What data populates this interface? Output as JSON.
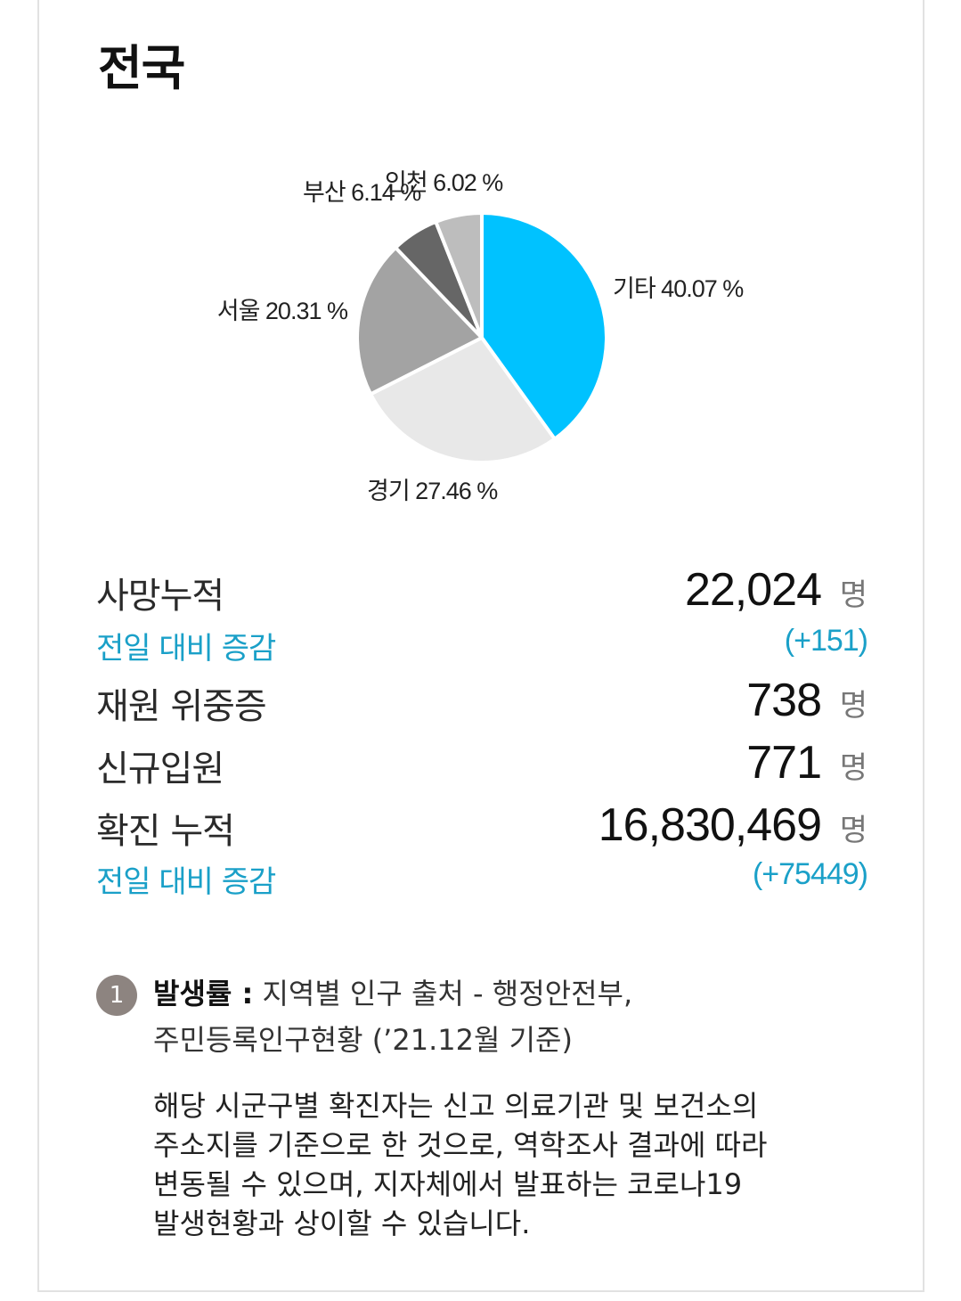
{
  "page": {
    "title": "전국"
  },
  "chart_data": {
    "type": "pie",
    "slices": [
      {
        "label": "기타",
        "value": 40.07,
        "display": "기타 40.07 %",
        "color": "#00c2ff"
      },
      {
        "label": "경기",
        "value": 27.46,
        "display": "경기 27.46 %",
        "color": "#e8e8e8"
      },
      {
        "label": "서울",
        "value": 20.31,
        "display": "서울 20.31 %",
        "color": "#a3a3a3"
      },
      {
        "label": "부산",
        "value": 6.14,
        "display": "부산 6.14 %",
        "color": "#666666"
      },
      {
        "label": "인천",
        "value": 6.02,
        "display": "인천 6.02 %",
        "color": "#bdbdbd"
      }
    ],
    "unit": "%"
  },
  "stats": {
    "deaths_label": "사망누적",
    "deaths_value": "22,024",
    "deaths_unit": "명",
    "deaths_delta_label": "전일 대비 증감",
    "deaths_delta_value": "(+151)",
    "critical_label": "재원 위중증",
    "critical_value": "738",
    "critical_unit": "명",
    "admit_label": "신규입원",
    "admit_value": "771",
    "admit_unit": "명",
    "confirmed_label": "확진 누적",
    "confirmed_value": "16,830,469",
    "confirmed_unit": "명",
    "confirmed_delta_label": "전일 대비 증감",
    "confirmed_delta_value": "(+75449)"
  },
  "note": {
    "number": "1",
    "strong": "발생률 :",
    "line1": " 지역별 인구 출처 - 행정안전부,",
    "line2": "주민등록인구현황 (’21.12월 기준)",
    "body": [
      "해당 시군구별 확진자는 신고 의료기관 및 보건소의",
      "주소지를 기준으로 한 것으로, 역학조사 결과에 따라",
      "변동될 수 있으며, 지자체에서 발표하는 코로나19",
      "발생현황과 상이할 수 있습니다."
    ]
  }
}
